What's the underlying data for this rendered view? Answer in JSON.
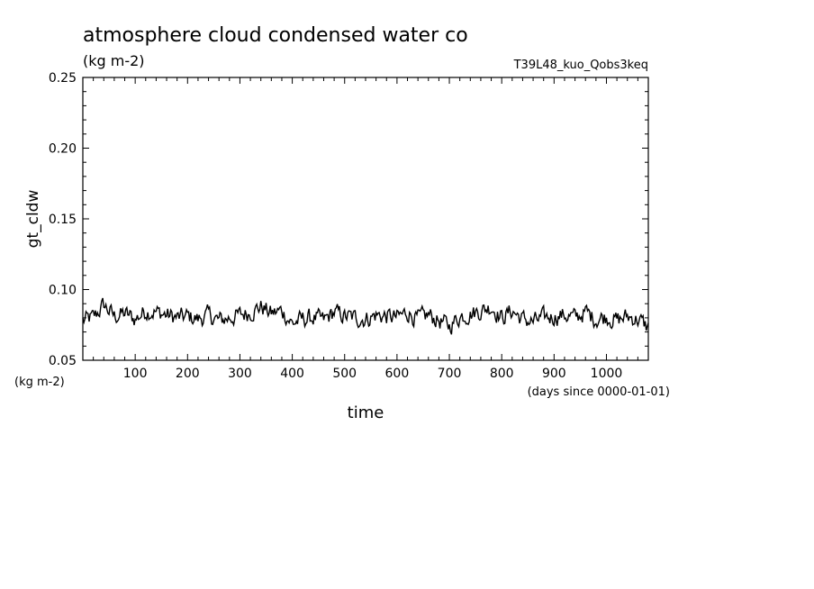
{
  "chart_data": {
    "type": "line",
    "title": "atmosphere cloud condensed water co",
    "subtitle": "(kg m-2)",
    "run_label": "T39L48_kuo_Qobs3keq",
    "ylabel": "gt_cldw",
    "yunit": "(kg m-2)",
    "xlabel": "time",
    "xunit": "(days since 0000-01-01)",
    "xlim": [
      0,
      1080
    ],
    "ylim": [
      0.05,
      0.25
    ],
    "xticks": [
      100,
      200,
      300,
      400,
      500,
      600,
      700,
      800,
      900,
      1000
    ],
    "yticks": [
      "0.05",
      "0.10",
      "0.15",
      "0.20",
      "0.25"
    ],
    "grid": false,
    "line_color": "#000000",
    "series": [
      {
        "x": [
          0,
          20,
          40,
          60,
          80,
          100,
          120,
          140,
          160,
          180,
          200,
          220,
          240,
          260,
          280,
          300,
          320,
          340,
          360,
          380,
          400,
          420,
          440,
          460,
          480,
          500,
          520,
          540,
          560,
          580,
          600,
          620,
          640,
          660,
          680,
          700,
          720,
          740,
          760,
          780,
          800,
          820,
          840,
          860,
          880,
          900,
          920,
          940,
          960,
          980,
          1000,
          1020,
          1040,
          1060,
          1080
        ],
        "values": [
          0.078,
          0.08,
          0.089,
          0.081,
          0.083,
          0.079,
          0.085,
          0.084,
          0.082,
          0.08,
          0.081,
          0.079,
          0.082,
          0.078,
          0.08,
          0.082,
          0.084,
          0.088,
          0.083,
          0.085,
          0.076,
          0.079,
          0.08,
          0.078,
          0.084,
          0.081,
          0.08,
          0.079,
          0.082,
          0.081,
          0.08,
          0.084,
          0.079,
          0.082,
          0.078,
          0.074,
          0.081,
          0.083,
          0.085,
          0.088,
          0.08,
          0.085,
          0.079,
          0.077,
          0.08,
          0.081,
          0.082,
          0.08,
          0.084,
          0.079,
          0.081,
          0.078,
          0.081,
          0.079,
          0.073
        ]
      }
    ]
  }
}
